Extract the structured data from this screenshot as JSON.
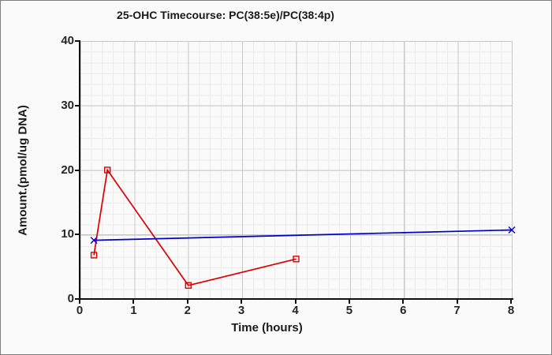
{
  "chart_data": {
    "type": "line",
    "title": "25-OHC Timecourse: PC(38:5e)/PC(38:4p)",
    "xlabel": "Time (hours)",
    "ylabel": "Amount.(pmol/ug DNA)",
    "xlim": [
      0,
      8
    ],
    "ylim": [
      0,
      40
    ],
    "x_ticks": [
      0,
      1,
      2,
      3,
      4,
      5,
      6,
      7,
      8
    ],
    "y_ticks": [
      0,
      10,
      20,
      30,
      40
    ],
    "grid": "major and minor gridlines on",
    "legend": "none",
    "series": [
      {
        "name": "red-squares-series",
        "color": "#dd0000",
        "marker": "square",
        "x": [
          0.25,
          0.5,
          2,
          4
        ],
        "y": [
          6.8,
          20.0,
          2.1,
          6.2
        ]
      },
      {
        "name": "blue-x-series",
        "color": "#0000cc",
        "marker": "x",
        "x": [
          0.25,
          8
        ],
        "y": [
          9.1,
          10.7
        ]
      }
    ],
    "colors": {
      "background": "#fafafa",
      "frame_border": "#7f7f7f",
      "axis": "#111111",
      "grid_major": "#c8c8c8",
      "grid_minor": "#ebebeb"
    }
  }
}
